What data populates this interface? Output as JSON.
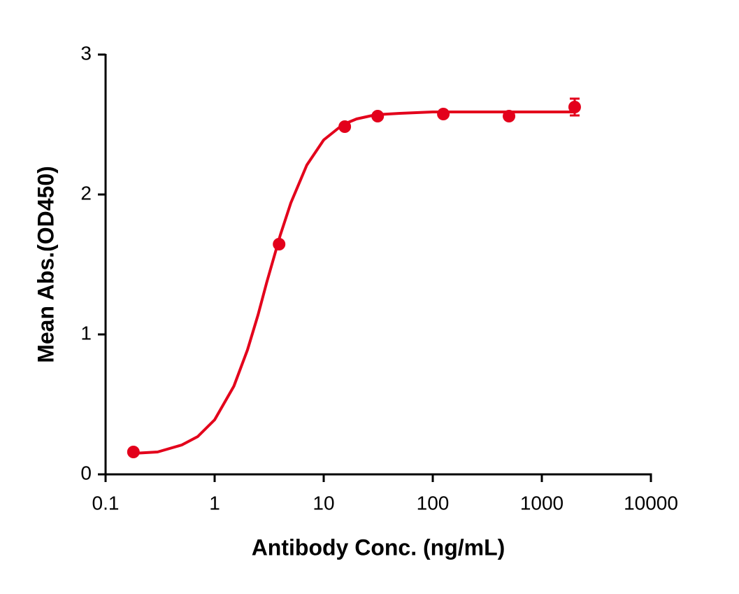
{
  "chart_data": {
    "type": "scatter",
    "x_label": "Antibody Conc. (ng/mL)",
    "y_label": "Mean Abs.(OD450)",
    "xscale": "log",
    "xlim": [
      0.1,
      10000
    ],
    "xticks": [
      0.1,
      1,
      10,
      100,
      1000,
      10000
    ],
    "ylim": [
      0,
      3
    ],
    "yticks": [
      0,
      1,
      2,
      3
    ],
    "color": "#e3001b",
    "series": [
      {
        "x": [
          0.18,
          3.9,
          15.6,
          31.25,
          125,
          500,
          2000
        ],
        "values": [
          0.16,
          1.645,
          2.485,
          2.56,
          2.575,
          2.56,
          2.625
        ],
        "errors": [
          null,
          null,
          null,
          null,
          null,
          null,
          0.06
        ]
      }
    ],
    "fit": {
      "x": [
        0.18,
        0.3,
        0.5,
        0.7,
        1,
        1.5,
        2,
        2.5,
        3,
        4,
        5,
        7,
        10,
        15,
        20,
        30,
        50,
        100,
        1000,
        2000
      ],
      "values": [
        0.15,
        0.16,
        0.21,
        0.27,
        0.39,
        0.63,
        0.89,
        1.14,
        1.37,
        1.71,
        1.94,
        2.21,
        2.39,
        2.5,
        2.54,
        2.57,
        2.58,
        2.59,
        2.59,
        2.59
      ]
    }
  }
}
